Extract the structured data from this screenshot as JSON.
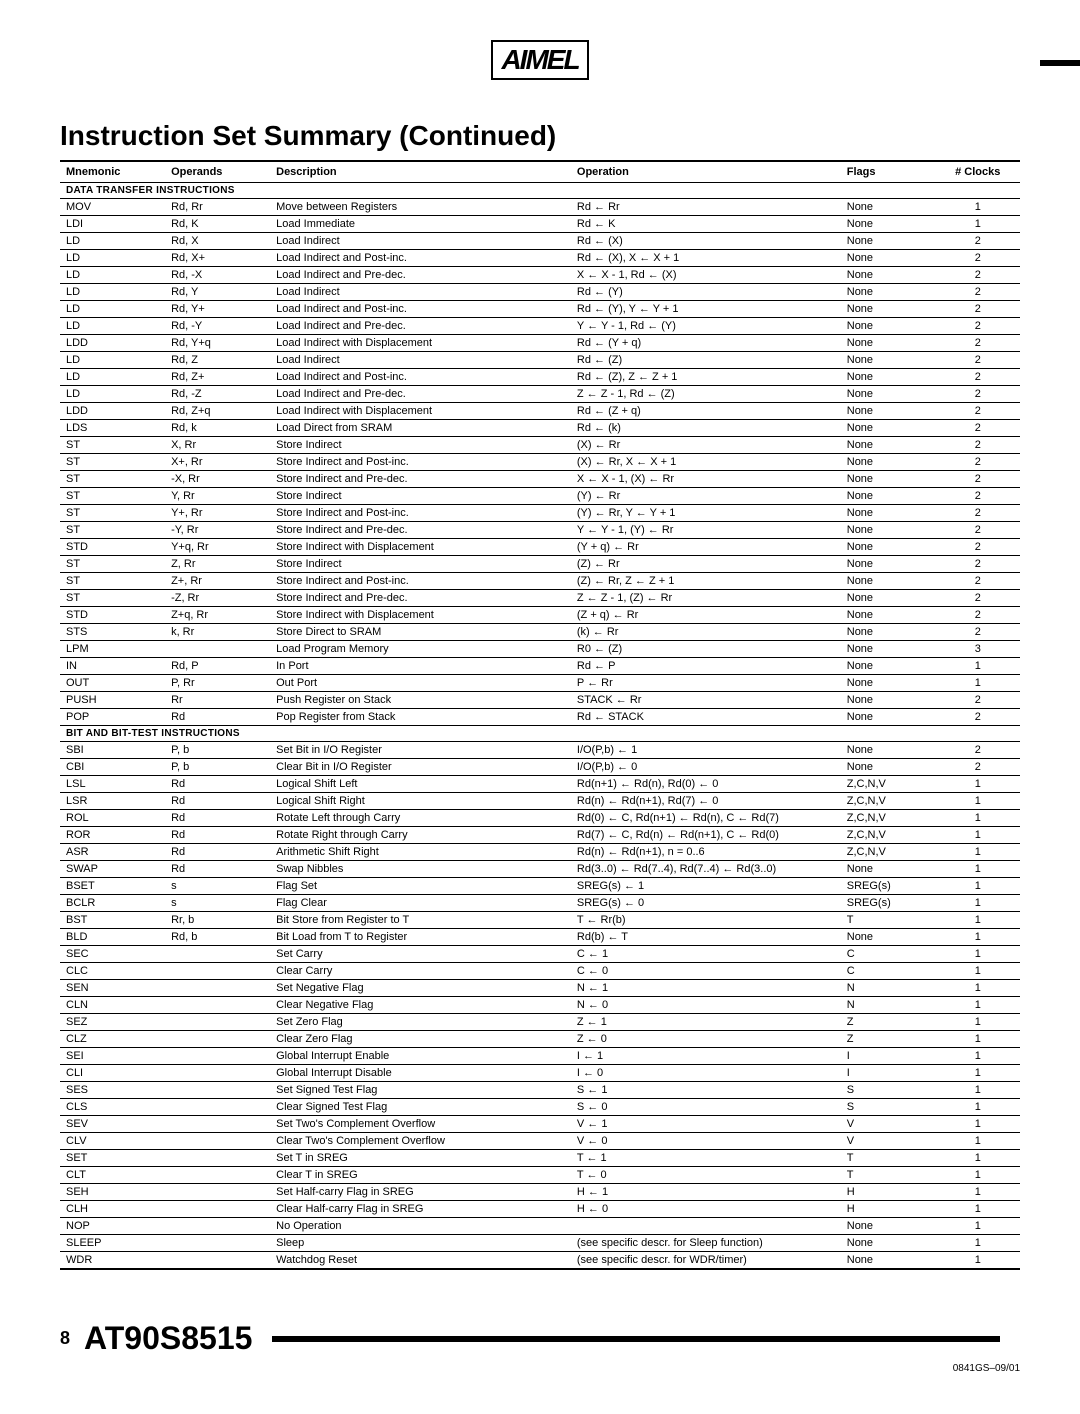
{
  "logo_text": "AIMEL",
  "title": "Instruction Set Summary (Continued)",
  "headers": {
    "mnemonic": "Mnemonic",
    "operands": "Operands",
    "description": "Description",
    "operation": "Operation",
    "flags": "Flags",
    "clocks": "# Clocks"
  },
  "sections": [
    {
      "name": "DATA TRANSFER INSTRUCTIONS",
      "rows": [
        [
          "MOV",
          "Rd, Rr",
          "Move between Registers",
          "Rd ← Rr",
          "None",
          "1"
        ],
        [
          "LDI",
          "Rd, K",
          "Load Immediate",
          "Rd ← K",
          "None",
          "1"
        ],
        [
          "LD",
          "Rd, X",
          "Load Indirect",
          "Rd ← (X)",
          "None",
          "2"
        ],
        [
          "LD",
          "Rd, X+",
          "Load Indirect and Post-inc.",
          "Rd ← (X), X ← X + 1",
          "None",
          "2"
        ],
        [
          "LD",
          "Rd, -X",
          "Load Indirect and Pre-dec.",
          "X ← X - 1, Rd ← (X)",
          "None",
          "2"
        ],
        [
          "LD",
          "Rd, Y",
          "Load Indirect",
          "Rd ← (Y)",
          "None",
          "2"
        ],
        [
          "LD",
          "Rd, Y+",
          "Load Indirect and Post-inc.",
          "Rd ← (Y), Y ← Y + 1",
          "None",
          "2"
        ],
        [
          "LD",
          "Rd, -Y",
          "Load Indirect and Pre-dec.",
          "Y ← Y - 1, Rd ← (Y)",
          "None",
          "2"
        ],
        [
          "LDD",
          "Rd, Y+q",
          "Load Indirect with Displacement",
          "Rd ← (Y + q)",
          "None",
          "2"
        ],
        [
          "LD",
          "Rd, Z",
          "Load Indirect",
          "Rd ← (Z)",
          "None",
          "2"
        ],
        [
          "LD",
          "Rd, Z+",
          "Load Indirect and Post-inc.",
          "Rd ← (Z), Z ← Z + 1",
          "None",
          "2"
        ],
        [
          "LD",
          "Rd, -Z",
          "Load Indirect and Pre-dec.",
          "Z ← Z - 1, Rd ← (Z)",
          "None",
          "2"
        ],
        [
          "LDD",
          "Rd, Z+q",
          "Load Indirect with Displacement",
          "Rd ← (Z + q)",
          "None",
          "2"
        ],
        [
          "LDS",
          "Rd, k",
          "Load Direct from SRAM",
          "Rd ← (k)",
          "None",
          "2"
        ],
        [
          "ST",
          "X, Rr",
          "Store Indirect",
          "(X) ← Rr",
          "None",
          "2"
        ],
        [
          "ST",
          "X+, Rr",
          "Store Indirect and Post-inc.",
          "(X) ← Rr, X ← X + 1",
          "None",
          "2"
        ],
        [
          "ST",
          "-X, Rr",
          "Store Indirect and Pre-dec.",
          "X ← X - 1, (X) ← Rr",
          "None",
          "2"
        ],
        [
          "ST",
          "Y, Rr",
          "Store Indirect",
          "(Y) ← Rr",
          "None",
          "2"
        ],
        [
          "ST",
          "Y+, Rr",
          "Store Indirect and Post-inc.",
          "(Y) ← Rr, Y ← Y + 1",
          "None",
          "2"
        ],
        [
          "ST",
          "-Y, Rr",
          "Store Indirect and Pre-dec.",
          "Y ← Y - 1, (Y) ← Rr",
          "None",
          "2"
        ],
        [
          "STD",
          "Y+q, Rr",
          "Store Indirect with Displacement",
          "(Y + q) ← Rr",
          "None",
          "2"
        ],
        [
          "ST",
          "Z, Rr",
          "Store Indirect",
          "(Z) ← Rr",
          "None",
          "2"
        ],
        [
          "ST",
          "Z+, Rr",
          "Store Indirect and Post-inc.",
          "(Z) ← Rr, Z ← Z + 1",
          "None",
          "2"
        ],
        [
          "ST",
          "-Z, Rr",
          "Store Indirect and Pre-dec.",
          "Z ← Z - 1, (Z) ← Rr",
          "None",
          "2"
        ],
        [
          "STD",
          "Z+q, Rr",
          "Store Indirect with Displacement",
          "(Z + q) ← Rr",
          "None",
          "2"
        ],
        [
          "STS",
          "k, Rr",
          "Store Direct to SRAM",
          "(k) ← Rr",
          "None",
          "2"
        ],
        [
          "LPM",
          "",
          "Load Program Memory",
          "R0 ← (Z)",
          "None",
          "3"
        ],
        [
          "IN",
          "Rd, P",
          "In Port",
          "Rd ← P",
          "None",
          "1"
        ],
        [
          "OUT",
          "P, Rr",
          "Out Port",
          "P ← Rr",
          "None",
          "1"
        ],
        [
          "PUSH",
          "Rr",
          "Push Register on Stack",
          "STACK ← Rr",
          "None",
          "2"
        ],
        [
          "POP",
          "Rd",
          "Pop Register from Stack",
          "Rd ← STACK",
          "None",
          "2"
        ]
      ]
    },
    {
      "name": "BIT AND BIT-TEST INSTRUCTIONS",
      "rows": [
        [
          "SBI",
          "P, b",
          "Set Bit in I/O Register",
          "I/O(P,b) ← 1",
          "None",
          "2"
        ],
        [
          "CBI",
          "P, b",
          "Clear Bit in I/O Register",
          "I/O(P,b) ← 0",
          "None",
          "2"
        ],
        [
          "LSL",
          "Rd",
          "Logical Shift Left",
          "Rd(n+1) ← Rd(n), Rd(0) ← 0",
          "Z,C,N,V",
          "1"
        ],
        [
          "LSR",
          "Rd",
          "Logical Shift Right",
          "Rd(n) ← Rd(n+1), Rd(7) ← 0",
          "Z,C,N,V",
          "1"
        ],
        [
          "ROL",
          "Rd",
          "Rotate Left through Carry",
          "Rd(0) ← C, Rd(n+1) ← Rd(n), C ← Rd(7)",
          "Z,C,N,V",
          "1"
        ],
        [
          "ROR",
          "Rd",
          "Rotate Right through Carry",
          "Rd(7) ← C, Rd(n) ← Rd(n+1), C ← Rd(0)",
          "Z,C,N,V",
          "1"
        ],
        [
          "ASR",
          "Rd",
          "Arithmetic Shift Right",
          "Rd(n) ← Rd(n+1), n = 0..6",
          "Z,C,N,V",
          "1"
        ],
        [
          "SWAP",
          "Rd",
          "Swap Nibbles",
          "Rd(3..0) ← Rd(7..4), Rd(7..4) ← Rd(3..0)",
          "None",
          "1"
        ],
        [
          "BSET",
          "s",
          "Flag Set",
          "SREG(s) ← 1",
          "SREG(s)",
          "1"
        ],
        [
          "BCLR",
          "s",
          "Flag Clear",
          "SREG(s) ← 0",
          "SREG(s)",
          "1"
        ],
        [
          "BST",
          "Rr, b",
          "Bit Store from Register to T",
          "T ← Rr(b)",
          "T",
          "1"
        ],
        [
          "BLD",
          "Rd, b",
          "Bit Load from T to Register",
          "Rd(b) ← T",
          "None",
          "1"
        ],
        [
          "SEC",
          "",
          "Set Carry",
          "C ← 1",
          "C",
          "1"
        ],
        [
          "CLC",
          "",
          "Clear Carry",
          "C ← 0",
          "C",
          "1"
        ],
        [
          "SEN",
          "",
          "Set Negative Flag",
          "N ← 1",
          "N",
          "1"
        ],
        [
          "CLN",
          "",
          "Clear Negative Flag",
          "N ← 0",
          "N",
          "1"
        ],
        [
          "SEZ",
          "",
          "Set Zero Flag",
          "Z ← 1",
          "Z",
          "1"
        ],
        [
          "CLZ",
          "",
          "Clear Zero Flag",
          "Z ← 0",
          "Z",
          "1"
        ],
        [
          "SEI",
          "",
          "Global Interrupt Enable",
          "I ← 1",
          "I",
          "1"
        ],
        [
          "CLI",
          "",
          "Global Interrupt Disable",
          "I ← 0",
          "I",
          "1"
        ],
        [
          "SES",
          "",
          "Set Signed Test Flag",
          "S ← 1",
          "S",
          "1"
        ],
        [
          "CLS",
          "",
          "Clear Signed Test Flag",
          "S ← 0",
          "S",
          "1"
        ],
        [
          "SEV",
          "",
          "Set Two's Complement Overflow",
          "V ← 1",
          "V",
          "1"
        ],
        [
          "CLV",
          "",
          "Clear Two's Complement Overflow",
          "V ← 0",
          "V",
          "1"
        ],
        [
          "SET",
          "",
          "Set T in SREG",
          "T ← 1",
          "T",
          "1"
        ],
        [
          "CLT",
          "",
          "Clear T in SREG",
          "T ← 0",
          "T",
          "1"
        ],
        [
          "SEH",
          "",
          "Set Half-carry Flag in SREG",
          "H ← 1",
          "H",
          "1"
        ],
        [
          "CLH",
          "",
          "Clear Half-carry Flag in SREG",
          "H ← 0",
          "H",
          "1"
        ],
        [
          "NOP",
          "",
          "No Operation",
          "",
          "None",
          "1"
        ],
        [
          "SLEEP",
          "",
          "Sleep",
          "(see specific descr. for Sleep function)",
          "None",
          "1"
        ],
        [
          "WDR",
          "",
          "Watchdog Reset",
          "(see specific descr. for WDR/timer)",
          "None",
          "1"
        ]
      ]
    }
  ],
  "footer": {
    "page": "8",
    "part": "AT90S8515",
    "docnum": "0841GS–09/01"
  }
}
